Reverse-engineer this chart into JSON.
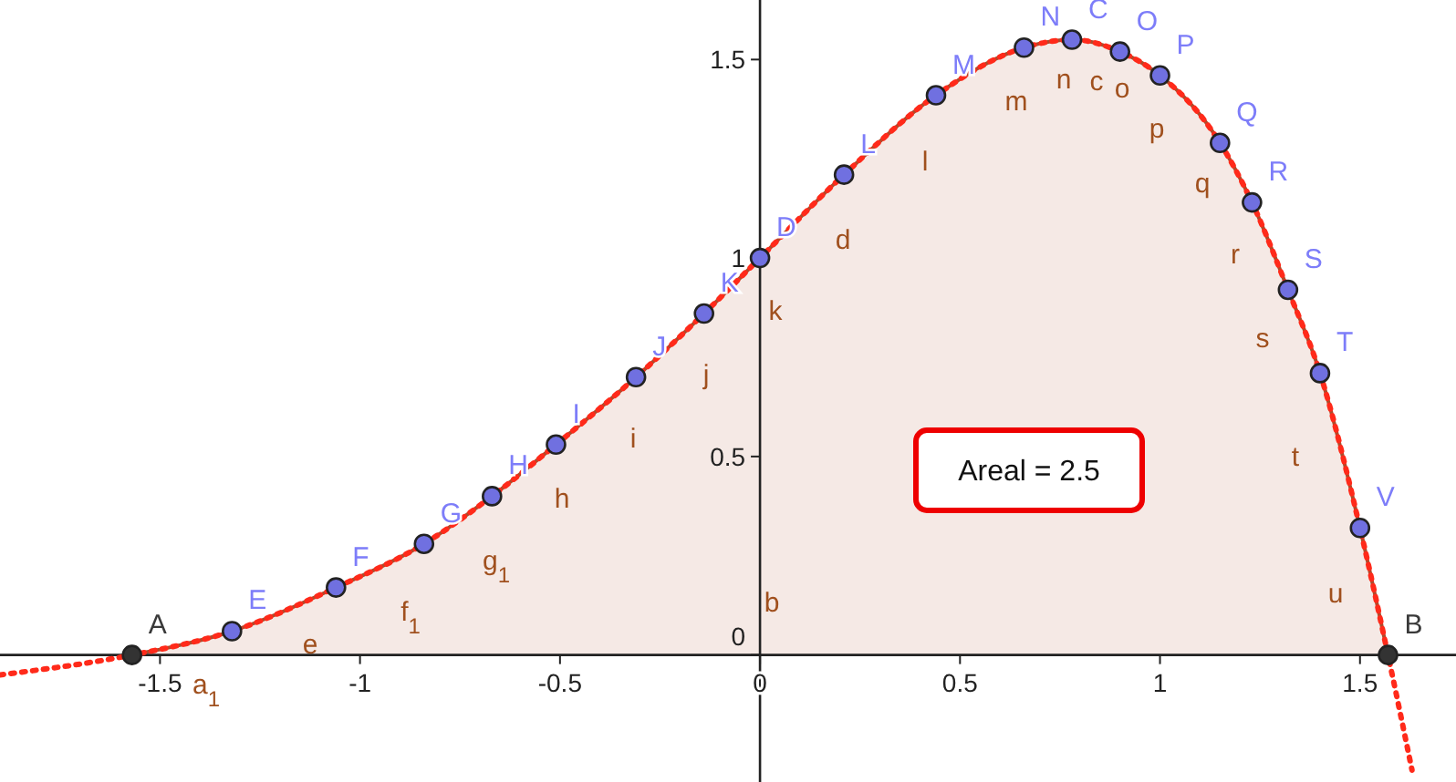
{
  "chart_data": {
    "type": "area",
    "xlim": [
      -1.9,
      1.74
    ],
    "ylim": [
      -0.32,
      1.65
    ],
    "xticks": [
      -1.5,
      -1,
      -0.5,
      0,
      0.5,
      1,
      1.5
    ],
    "yticks": [
      0,
      0.5,
      1,
      1.5
    ],
    "grid": false,
    "series": [
      {
        "color": "#b04a2a",
        "marker": "none",
        "x": [
          -1.57,
          -1.32,
          -1.06,
          -0.84,
          -0.67,
          -0.51,
          -0.31,
          -0.14,
          0,
          0.21,
          0.44,
          0.66,
          0.78,
          0.9,
          1.0,
          1.15,
          1.23,
          1.32,
          1.4,
          1.5,
          1.57
        ],
        "values": [
          0,
          0.06,
          0.17,
          0.28,
          0.4,
          0.53,
          0.7,
          0.86,
          1.0,
          1.21,
          1.41,
          1.53,
          1.55,
          1.52,
          1.46,
          1.29,
          1.14,
          0.92,
          0.71,
          0.32,
          0
        ]
      },
      {
        "type": "line",
        "color": "#ff2a1a",
        "line_style": "dotted",
        "x": [
          -1.9,
          -1.57,
          -1.32,
          -1.06,
          -0.84,
          -0.67,
          -0.51,
          -0.31,
          -0.14,
          0,
          0.21,
          0.44,
          0.66,
          0.78,
          0.9,
          1.0,
          1.15,
          1.23,
          1.32,
          1.4,
          1.5,
          1.57,
          1.63
        ],
        "values": [
          -0.05,
          0,
          0.06,
          0.17,
          0.28,
          0.4,
          0.53,
          0.7,
          0.86,
          1.0,
          1.21,
          1.41,
          1.53,
          1.55,
          1.52,
          1.46,
          1.29,
          1.14,
          0.92,
          0.71,
          0.32,
          0,
          -0.29
        ]
      },
      {
        "type": "scatter",
        "color": "#7070e0",
        "marker": "circle",
        "x": [
          -1.32,
          -1.06,
          -0.84,
          -0.67,
          -0.51,
          -0.31,
          -0.14,
          0,
          0.21,
          0.44,
          0.66,
          0.78,
          0.9,
          1.0,
          1.15,
          1.23,
          1.32,
          1.4,
          1.5
        ],
        "values": [
          0.06,
          0.17,
          0.28,
          0.4,
          0.53,
          0.7,
          0.86,
          1.0,
          1.21,
          1.41,
          1.53,
          1.55,
          1.52,
          1.46,
          1.29,
          1.14,
          0.92,
          0.71,
          0.32
        ],
        "value_labels": [
          "E",
          "F",
          "G",
          "H",
          "I",
          "J",
          "K",
          "D",
          "L",
          "M",
          "N",
          "C",
          "O",
          "P",
          "Q",
          "R",
          "S",
          "T",
          "V"
        ]
      },
      {
        "type": "scatter",
        "color": "#333333",
        "marker": "circle",
        "x": [
          -1.57,
          1.57
        ],
        "values": [
          0,
          0
        ],
        "value_labels": [
          "A",
          "B"
        ]
      }
    ],
    "annotations": [
      "Areal = 2.5",
      "a$_{1}$",
      "e",
      "f$_{1}$",
      "g$_{1}$",
      "h",
      "i",
      "j",
      "k",
      "d",
      "l",
      "m",
      "n",
      "c",
      "o",
      "p",
      "q",
      "r",
      "s",
      "t",
      "u",
      "b"
    ]
  }
}
